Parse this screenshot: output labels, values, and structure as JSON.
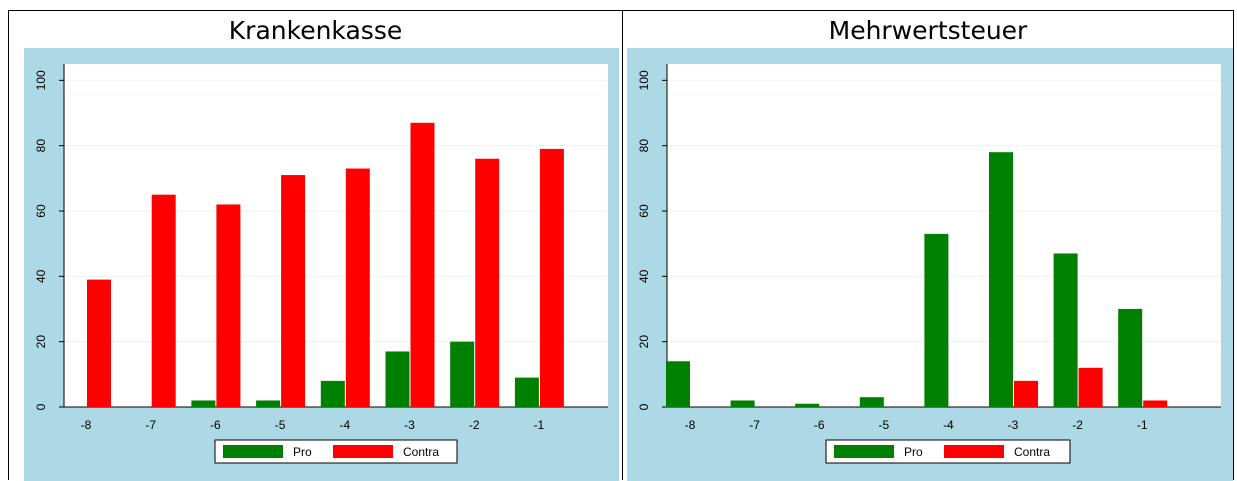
{
  "charts": [
    {
      "title": "Krankenkasse",
      "chart_data": {
        "type": "bar",
        "categories": [
          "-8",
          "-7",
          "-6",
          "-5",
          "-4",
          "-3",
          "-2",
          "-1"
        ],
        "series": [
          {
            "name": "Pro",
            "color": "#008000",
            "values": [
              0,
              0,
              2,
              2,
              8,
              17,
              20,
              9
            ]
          },
          {
            "name": "Contra",
            "color": "#ff0000",
            "values": [
              39,
              65,
              62,
              71,
              73,
              87,
              76,
              79
            ]
          }
        ],
        "ylim": [
          0,
          105
        ],
        "yticks": [
          "0",
          "20",
          "40",
          "60",
          "80",
          "100"
        ],
        "grid": true,
        "legend": "bottom"
      }
    },
    {
      "title": "Mehrwertsteuer",
      "chart_data": {
        "type": "bar",
        "categories": [
          "-8",
          "-7",
          "-6",
          "-5",
          "-4",
          "-3",
          "-2",
          "-1"
        ],
        "series": [
          {
            "name": "Pro",
            "color": "#008000",
            "values": [
              14,
              2,
              1,
              3,
              53,
              78,
              47,
              30
            ]
          },
          {
            "name": "Contra",
            "color": "#ff0000",
            "values": [
              0,
              0,
              0,
              0,
              0,
              8,
              12,
              2
            ]
          }
        ],
        "ylim": [
          0,
          105
        ],
        "yticks": [
          "0",
          "20",
          "40",
          "60",
          "80",
          "100"
        ],
        "grid": true,
        "legend": "bottom"
      }
    }
  ]
}
